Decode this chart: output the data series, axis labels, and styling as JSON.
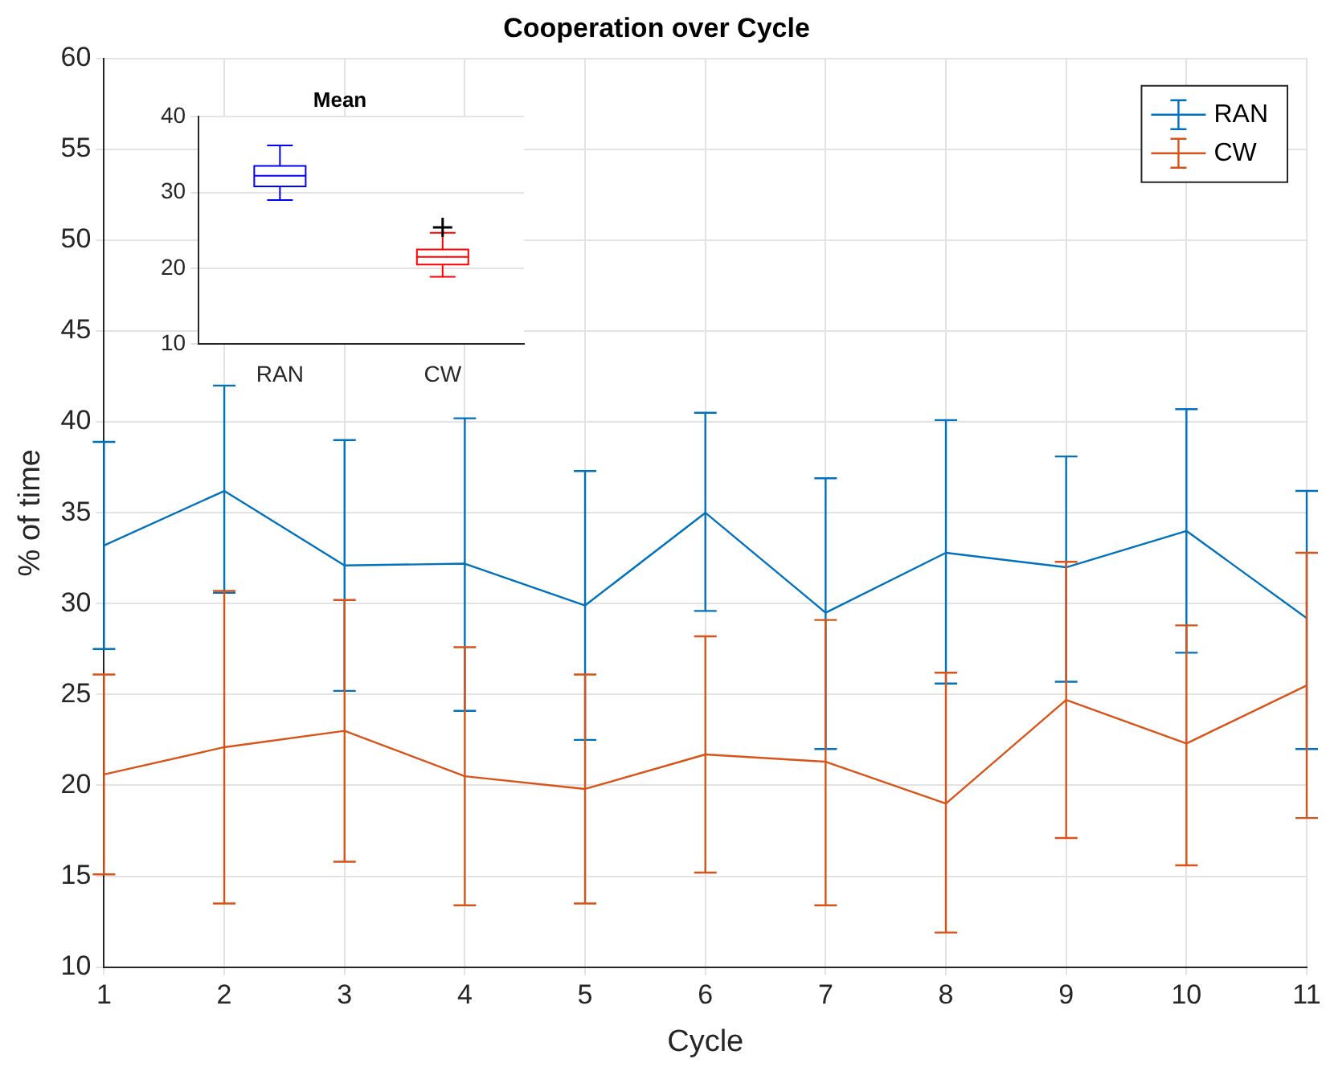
{
  "chart_data": [
    {
      "type": "line",
      "title": "Cooperation over Cycle",
      "xlabel": "Cycle",
      "ylabel": "% of time",
      "x": [
        1,
        2,
        3,
        4,
        5,
        6,
        7,
        8,
        9,
        10,
        11
      ],
      "xlim": [
        1,
        11
      ],
      "xticks": [
        1,
        2,
        3,
        4,
        5,
        6,
        7,
        8,
        9,
        10,
        11
      ],
      "ylim": [
        10,
        60
      ],
      "yticks": [
        10,
        15,
        20,
        25,
        30,
        35,
        40,
        45,
        50,
        55,
        60
      ],
      "grid": true,
      "legend": "top right",
      "marker": "none",
      "line_style": "solid",
      "series": [
        {
          "name": "RAN",
          "color": "#0072bd",
          "values": [
            33.2,
            36.2,
            32.1,
            32.2,
            29.9,
            35.0,
            29.5,
            32.8,
            32.0,
            34.0,
            29.2
          ],
          "errors": [
            [
              27.5,
              38.9
            ],
            [
              30.6,
              42.0
            ],
            [
              25.2,
              39.0
            ],
            [
              24.1,
              40.2
            ],
            [
              22.5,
              37.3
            ],
            [
              29.6,
              40.5
            ],
            [
              22.0,
              36.9
            ],
            [
              25.6,
              40.1
            ],
            [
              25.7,
              38.1
            ],
            [
              27.3,
              40.7
            ],
            [
              22.0,
              36.2
            ]
          ]
        },
        {
          "name": "CW",
          "color": "#d95319",
          "values": [
            20.6,
            22.1,
            23.0,
            20.5,
            19.8,
            21.7,
            21.3,
            19.0,
            24.7,
            22.3,
            25.5
          ],
          "errors": [
            [
              15.1,
              26.1
            ],
            [
              13.5,
              30.7
            ],
            [
              15.8,
              30.2
            ],
            [
              13.4,
              27.6
            ],
            [
              13.5,
              26.1
            ],
            [
              15.2,
              28.2
            ],
            [
              13.4,
              29.1
            ],
            [
              11.9,
              26.2
            ],
            [
              17.1,
              32.3
            ],
            [
              15.6,
              28.8
            ],
            [
              18.2,
              32.8
            ]
          ]
        }
      ]
    },
    {
      "type": "box",
      "title": "Mean",
      "categories": [
        "RAN",
        "CW"
      ],
      "ylim": [
        10,
        40
      ],
      "yticks": [
        10,
        20,
        30,
        40
      ],
      "grid": "y",
      "colors": [
        "#0000ff",
        "#ff0000"
      ],
      "boxes": [
        {
          "low": 29.0,
          "q1": 30.8,
          "median": 32.2,
          "q3": 33.5,
          "high": 36.2
        },
        {
          "low": 18.9,
          "q1": 20.5,
          "median": 21.5,
          "q3": 22.5,
          "high": 24.7,
          "outliers": [
            25.4
          ]
        }
      ]
    }
  ]
}
